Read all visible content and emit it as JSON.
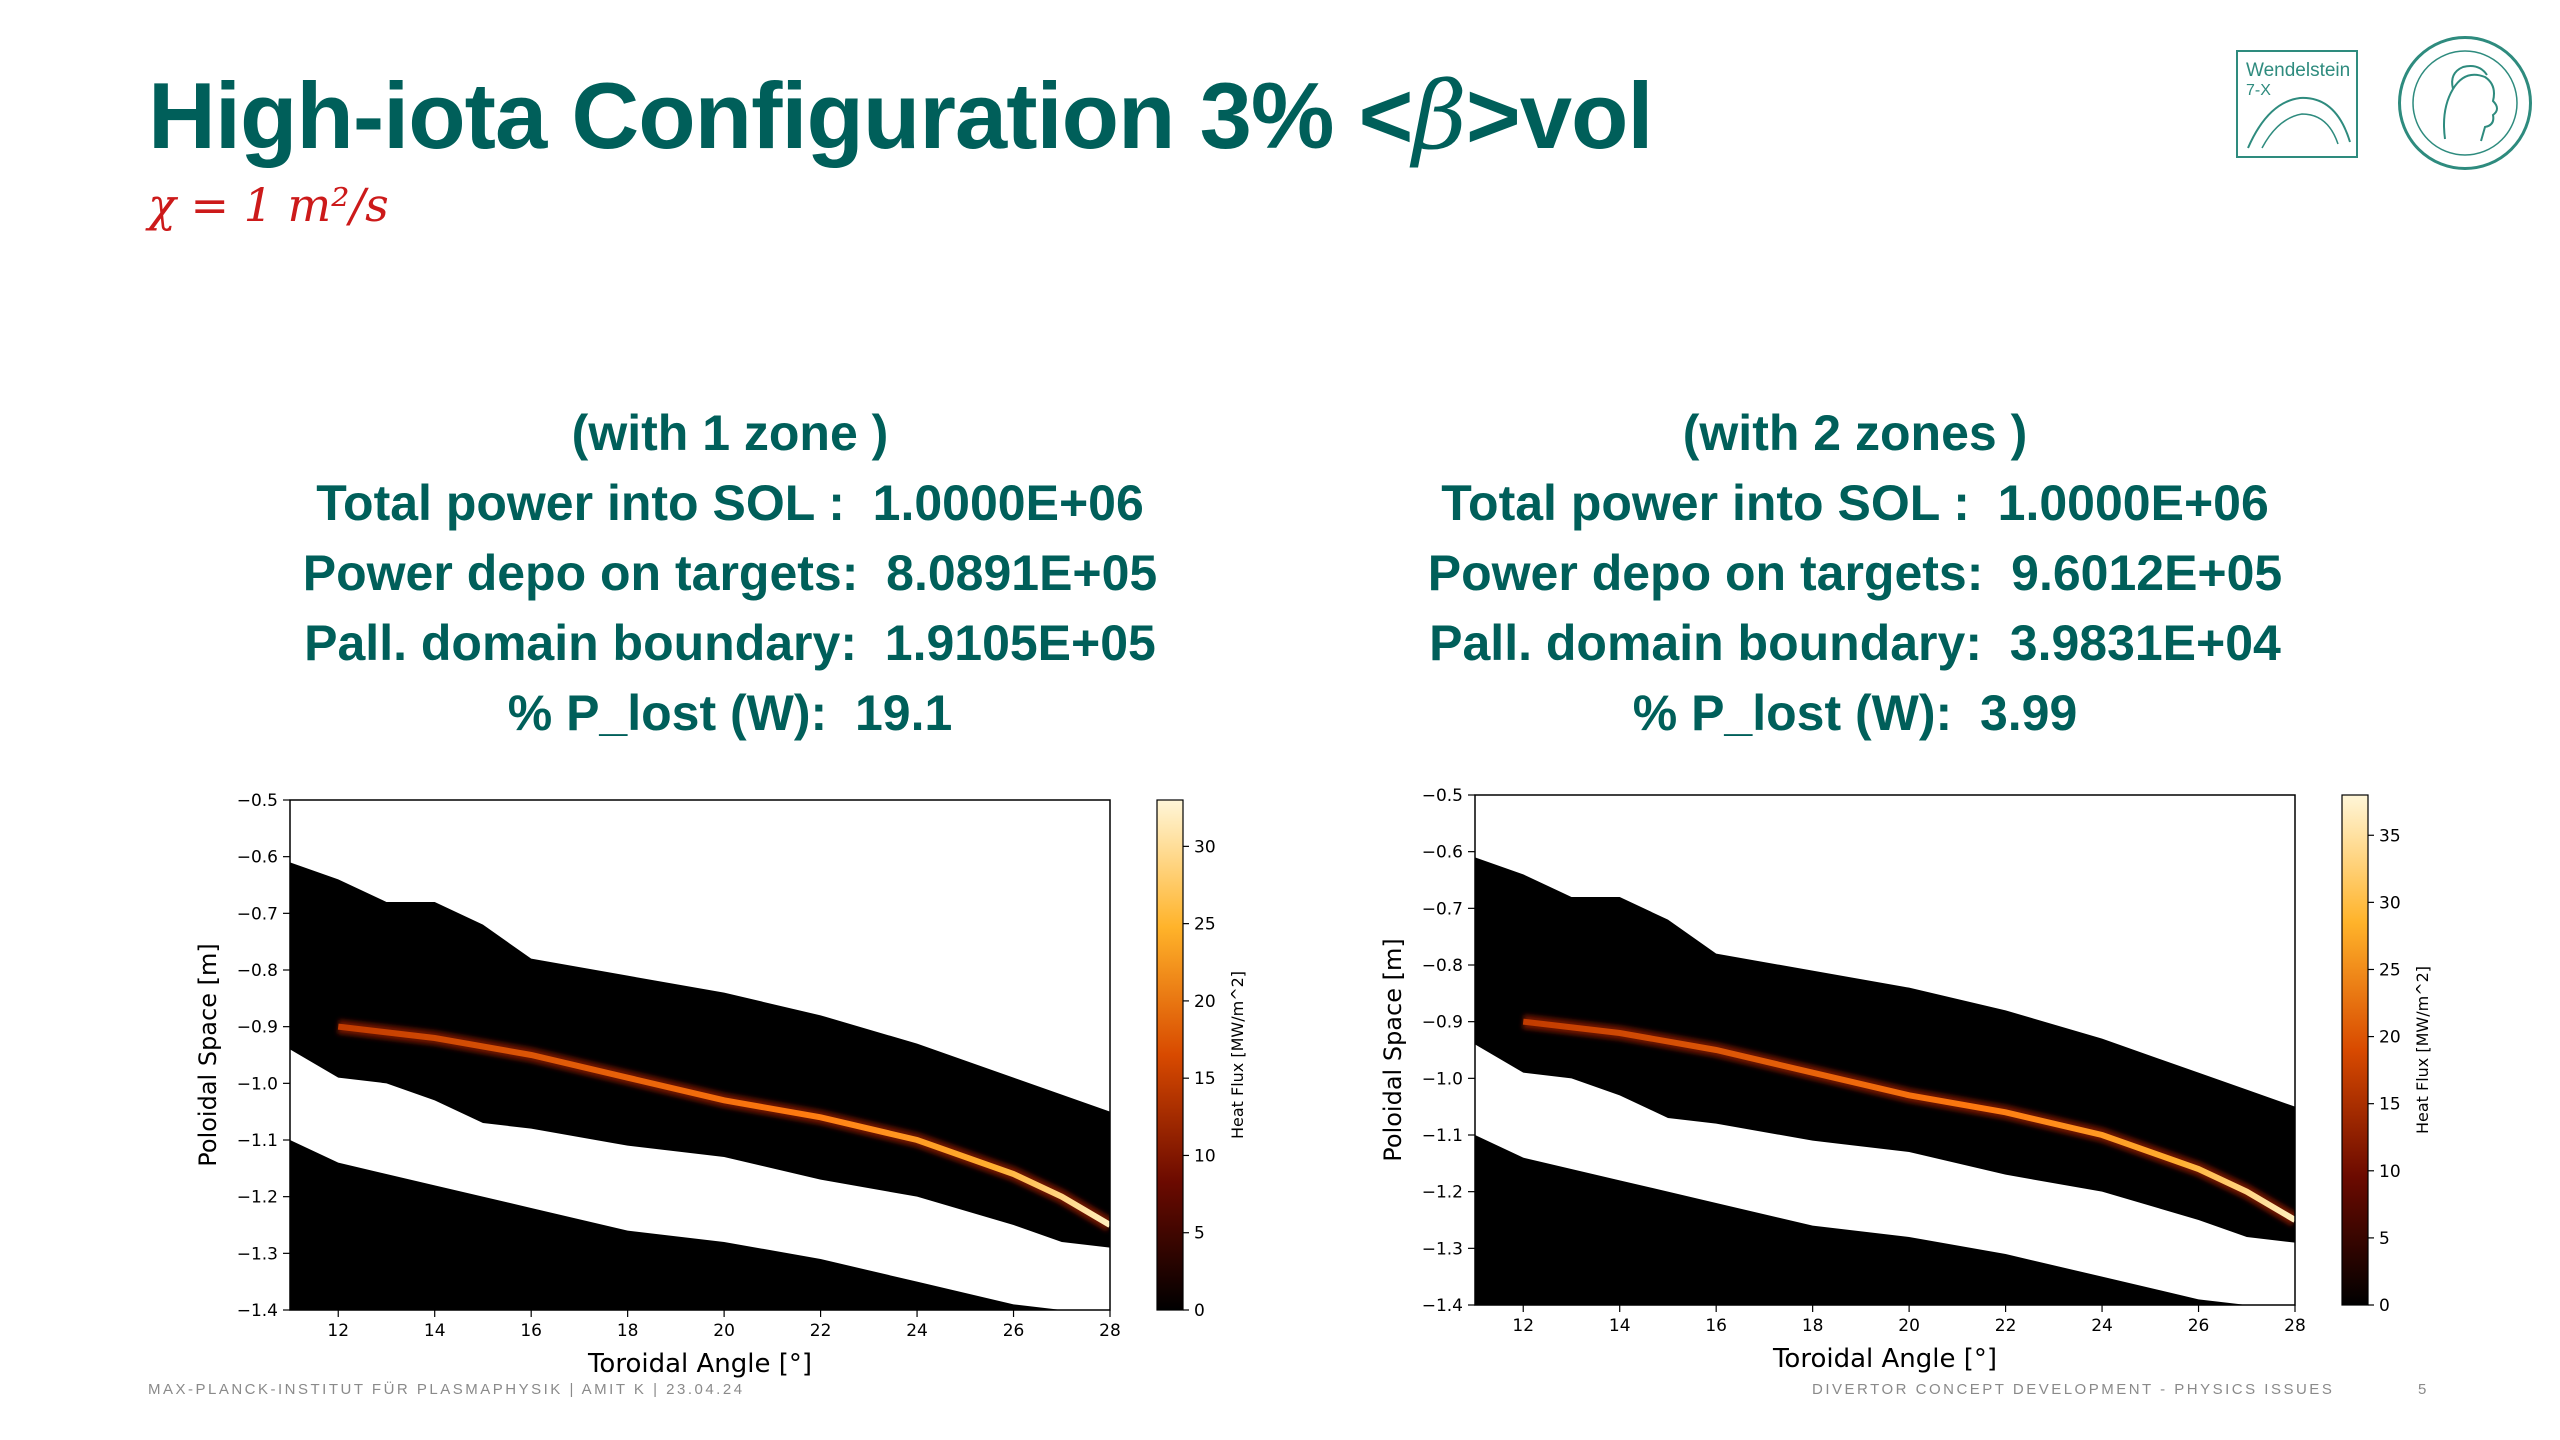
{
  "slide": {
    "title_pre": "High-iota Configuration 3% <",
    "title_beta": "β",
    "title_post": ">vol",
    "subtitle": "χ = 1 m²/s",
    "logos": {
      "w7x_line1": "Wendelstein",
      "w7x_line2": "7-X"
    },
    "footer_left": "MAX-PLANCK-INSTITUT FÜR PLASMAPHYSIK | AMIT K | 23.04.24",
    "footer_right": "DIVERTOR CONCEPT DEVELOPMENT - PHYSICS ISSUES",
    "page_number": "5"
  },
  "panels": [
    {
      "lines": [
        "(with 1 zone )",
        "Total power into SOL :  1.0000E+06",
        "Power depo on targets:  8.0891E+05",
        "Pall. domain boundary:  1.9105E+05",
        "% P_lost (W):  19.1"
      ]
    },
    {
      "lines": [
        "(with 2 zones )",
        "Total power into SOL :  1.0000E+06",
        "Power depo on targets:  9.6012E+05",
        "Pall. domain boundary:  3.9831E+04",
        "% P_lost (W):  3.99"
      ]
    }
  ],
  "chart_data": [
    {
      "type": "heatmap",
      "xlabel": "Toroidal Angle [°]",
      "ylabel": "Poloidal Space [m]",
      "colorbar_label": "Heat Flux [MW/m^2]",
      "xlim": [
        11,
        28
      ],
      "ylim": [
        -1.4,
        -0.5
      ],
      "xticks": [
        12,
        14,
        16,
        18,
        20,
        22,
        24,
        26,
        28
      ],
      "yticks": [
        -0.5,
        -0.6,
        -0.7,
        -0.8,
        -0.9,
        -1.0,
        -1.1,
        -1.2,
        -1.3,
        -1.4
      ],
      "xtick_labels": [
        "12",
        "14",
        "16",
        "18",
        "20",
        "22",
        "24",
        "26",
        "28"
      ],
      "ytick_labels": [
        "−0.5",
        "−0.6",
        "−0.7",
        "−0.8",
        "−0.9",
        "−1.0",
        "−1.1",
        "−1.2",
        "−1.3",
        "−1.4"
      ],
      "colorbar_range": [
        0,
        33
      ],
      "colorbar_ticks": [
        0,
        5,
        10,
        15,
        20,
        25,
        30
      ],
      "colorbar_tick_labels": [
        "0",
        "5",
        "10",
        "15",
        "20",
        "25",
        "30"
      ],
      "colormap": "afmhot",
      "band_upper": [
        [
          11,
          -0.61
        ],
        [
          12,
          -0.64
        ],
        [
          13,
          -0.68
        ],
        [
          14,
          -0.68
        ],
        [
          15,
          -0.72
        ],
        [
          16,
          -0.78
        ],
        [
          18,
          -0.81
        ],
        [
          20,
          -0.84
        ],
        [
          22,
          -0.88
        ],
        [
          24,
          -0.93
        ],
        [
          26,
          -0.99
        ],
        [
          27,
          -1.02
        ],
        [
          28,
          -1.05
        ]
      ],
      "band_lower": [
        [
          11,
          -0.94
        ],
        [
          12,
          -0.99
        ],
        [
          13,
          -1.0
        ],
        [
          14,
          -1.03
        ],
        [
          15,
          -1.07
        ],
        [
          16,
          -1.08
        ],
        [
          18,
          -1.11
        ],
        [
          20,
          -1.13
        ],
        [
          22,
          -1.17
        ],
        [
          24,
          -1.2
        ],
        [
          26,
          -1.25
        ],
        [
          27,
          -1.28
        ],
        [
          28,
          -1.29
        ]
      ],
      "floor_upper": [
        [
          11,
          -1.1
        ],
        [
          12,
          -1.14
        ],
        [
          14,
          -1.18
        ],
        [
          16,
          -1.22
        ],
        [
          18,
          -1.26
        ],
        [
          20,
          -1.28
        ],
        [
          22,
          -1.31
        ],
        [
          24,
          -1.35
        ],
        [
          26,
          -1.39
        ],
        [
          27,
          -1.4
        ]
      ],
      "strike_line": [
        [
          12,
          -0.9
        ],
        [
          14,
          -0.92
        ],
        [
          16,
          -0.95
        ],
        [
          18,
          -0.99
        ],
        [
          20,
          -1.03
        ],
        [
          22,
          -1.06
        ],
        [
          24,
          -1.1
        ],
        [
          26,
          -1.16
        ],
        [
          27,
          -1.2
        ],
        [
          28,
          -1.25
        ]
      ],
      "strike_peak": 30
    },
    {
      "type": "heatmap",
      "xlabel": "Toroidal Angle [°]",
      "ylabel": "Poloidal Space [m]",
      "colorbar_label": "Heat Flux [MW/m^2]",
      "xlim": [
        11,
        28
      ],
      "ylim": [
        -1.4,
        -0.5
      ],
      "xticks": [
        12,
        14,
        16,
        18,
        20,
        22,
        24,
        26,
        28
      ],
      "yticks": [
        -0.5,
        -0.6,
        -0.7,
        -0.8,
        -0.9,
        -1.0,
        -1.1,
        -1.2,
        -1.3,
        -1.4
      ],
      "xtick_labels": [
        "12",
        "14",
        "16",
        "18",
        "20",
        "22",
        "24",
        "26",
        "28"
      ],
      "ytick_labels": [
        "−0.5",
        "−0.6",
        "−0.7",
        "−0.8",
        "−0.9",
        "−1.0",
        "−1.1",
        "−1.2",
        "−1.3",
        "−1.4"
      ],
      "colorbar_range": [
        0,
        38
      ],
      "colorbar_ticks": [
        0,
        5,
        10,
        15,
        20,
        25,
        30,
        35
      ],
      "colorbar_tick_labels": [
        "0",
        "5",
        "10",
        "15",
        "20",
        "25",
        "30",
        "35"
      ],
      "colormap": "afmhot",
      "band_upper": [
        [
          11,
          -0.61
        ],
        [
          12,
          -0.64
        ],
        [
          13,
          -0.68
        ],
        [
          14,
          -0.68
        ],
        [
          15,
          -0.72
        ],
        [
          16,
          -0.78
        ],
        [
          18,
          -0.81
        ],
        [
          20,
          -0.84
        ],
        [
          22,
          -0.88
        ],
        [
          24,
          -0.93
        ],
        [
          26,
          -0.99
        ],
        [
          27,
          -1.02
        ],
        [
          28,
          -1.05
        ]
      ],
      "band_lower": [
        [
          11,
          -0.94
        ],
        [
          12,
          -0.99
        ],
        [
          13,
          -1.0
        ],
        [
          14,
          -1.03
        ],
        [
          15,
          -1.07
        ],
        [
          16,
          -1.08
        ],
        [
          18,
          -1.11
        ],
        [
          20,
          -1.13
        ],
        [
          22,
          -1.17
        ],
        [
          24,
          -1.2
        ],
        [
          26,
          -1.25
        ],
        [
          27,
          -1.28
        ],
        [
          28,
          -1.29
        ]
      ],
      "floor_upper": [
        [
          11,
          -1.1
        ],
        [
          12,
          -1.14
        ],
        [
          14,
          -1.18
        ],
        [
          16,
          -1.22
        ],
        [
          18,
          -1.26
        ],
        [
          20,
          -1.28
        ],
        [
          22,
          -1.31
        ],
        [
          24,
          -1.35
        ],
        [
          26,
          -1.39
        ],
        [
          27,
          -1.4
        ]
      ],
      "strike_line": [
        [
          12,
          -0.9
        ],
        [
          14,
          -0.92
        ],
        [
          16,
          -0.95
        ],
        [
          18,
          -0.99
        ],
        [
          20,
          -1.03
        ],
        [
          22,
          -1.06
        ],
        [
          24,
          -1.1
        ],
        [
          26,
          -1.16
        ],
        [
          27,
          -1.2
        ],
        [
          28,
          -1.25
        ]
      ],
      "strike_peak": 35
    }
  ]
}
